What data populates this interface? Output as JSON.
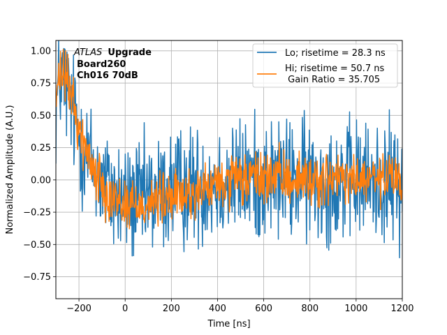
{
  "chart_data": {
    "type": "line",
    "title": "",
    "xlabel": "Time [ns]",
    "ylabel": "Normalized Amplitude (A.U.)",
    "xlim": [
      -300,
      1200
    ],
    "ylim": [
      -0.92,
      1.08
    ],
    "grid": true,
    "x_ticks": [
      -200,
      0,
      200,
      400,
      600,
      800,
      1000,
      1200
    ],
    "x_tick_labels": [
      "−200",
      "0",
      "200",
      "400",
      "600",
      "800",
      "1000",
      "1200"
    ],
    "y_ticks": [
      -0.75,
      -0.5,
      -0.25,
      0.0,
      0.25,
      0.5,
      0.75,
      1.0
    ],
    "y_tick_labels": [
      "−0.75",
      "−0.50",
      "−0.25",
      "0.00",
      "0.25",
      "0.50",
      "0.75",
      "1.00"
    ],
    "annotation": {
      "experiment_italic": "ATLAS",
      "experiment_bold": "Upgrade",
      "line2": "Board260",
      "line3": "Ch016 70dB"
    },
    "legend": {
      "placement": "top-right",
      "entries": [
        {
          "label": "Lo; risetime = 28.3 ns",
          "color": "#1f77b4"
        },
        {
          "label": "Hi; risetime = 50.7 ns",
          "label_line2": " Gain Ratio = 35.705",
          "color": "#ff7f0e"
        }
      ]
    },
    "series": [
      {
        "name": "Lo",
        "color": "#1f77b4",
        "envelope_x": [
          -300,
          -280,
          -260,
          -240,
          -220,
          -200,
          -180,
          -160,
          -140,
          -120,
          -100,
          -80,
          -60,
          -40,
          -20,
          0,
          20,
          40,
          60,
          80,
          100,
          150,
          200,
          250,
          300,
          350,
          400,
          450,
          500,
          550,
          600,
          650,
          700,
          750,
          800,
          850,
          900,
          950,
          1000,
          1050,
          1100,
          1150,
          1200
        ],
        "envelope_y": [
          0.55,
          0.8,
          0.75,
          0.62,
          0.48,
          0.35,
          0.25,
          0.18,
          0.1,
          0.04,
          -0.02,
          -0.06,
          -0.1,
          -0.13,
          -0.15,
          -0.16,
          -0.17,
          -0.17,
          -0.16,
          -0.15,
          -0.14,
          -0.11,
          -0.08,
          -0.06,
          -0.05,
          -0.03,
          -0.02,
          -0.01,
          0.0,
          0.01,
          0.01,
          0.01,
          0.0,
          0.0,
          0.0,
          -0.01,
          -0.01,
          -0.01,
          -0.01,
          -0.01,
          -0.02,
          -0.02,
          -0.02
        ],
        "noise_amplitude": 0.23,
        "points": 750
      },
      {
        "name": "Hi",
        "color": "#ff7f0e",
        "envelope_x": [
          -300,
          -280,
          -260,
          -240,
          -220,
          -200,
          -180,
          -160,
          -140,
          -120,
          -100,
          -80,
          -60,
          -40,
          -20,
          0,
          20,
          40,
          60,
          80,
          100,
          150,
          200,
          250,
          300,
          350,
          400,
          450,
          500,
          550,
          600,
          650,
          700,
          750,
          800,
          850,
          900,
          950,
          1000,
          1050,
          1100,
          1150,
          1200
        ],
        "envelope_y": [
          0.6,
          0.82,
          0.8,
          0.7,
          0.55,
          0.4,
          0.28,
          0.18,
          0.1,
          0.03,
          -0.03,
          -0.08,
          -0.12,
          -0.15,
          -0.17,
          -0.18,
          -0.19,
          -0.19,
          -0.19,
          -0.18,
          -0.18,
          -0.16,
          -0.14,
          -0.12,
          -0.1,
          -0.07,
          -0.04,
          -0.02,
          0.0,
          0.01,
          0.02,
          0.02,
          0.01,
          0.01,
          0.0,
          0.0,
          0.0,
          0.0,
          0.0,
          0.0,
          0.0,
          0.0,
          0.0
        ],
        "noise_amplitude": 0.1,
        "points": 750
      }
    ]
  }
}
